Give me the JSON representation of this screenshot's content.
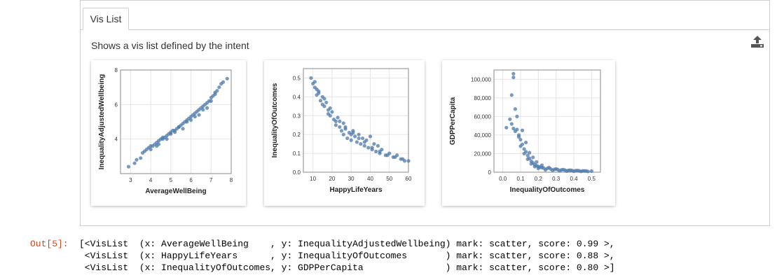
{
  "widget": {
    "tab_label": "Vis List",
    "description": "Shows a vis list defined by the intent",
    "export_icon": "upload-icon",
    "mark_color": "#4c78a8"
  },
  "output": {
    "prompt": "Out[5]:",
    "lines": [
      "[<VisList  (x: AverageWellBeing    , y: InequalityAdjustedWellbeing) mark: scatter, score: 0.99 >,",
      " <VisList  (x: HappyLifeYears      , y: InequalityOfOutcomes       ) mark: scatter, score: 0.88 >,",
      " <VisList  (x: InequalityOfOutcomes, y: GDPPerCapita               ) mark: scatter, score: 0.80 >]"
    ]
  },
  "chart_data": [
    {
      "type": "scatter",
      "xlabel": "AverageWellBeing",
      "ylabel": "InequalityAdjustedWellbeing",
      "xlim": [
        2.5,
        8
      ],
      "ylim": [
        2,
        8
      ],
      "xticks": [
        "3",
        "4",
        "5",
        "6",
        "7",
        "8"
      ],
      "yticks": [
        "4",
        "6",
        "8"
      ],
      "x": [
        2.9,
        3.2,
        3.3,
        3.5,
        3.7,
        3.8,
        3.9,
        4.0,
        4.1,
        4.2,
        4.3,
        4.4,
        4.5,
        4.6,
        4.7,
        4.8,
        4.9,
        5.0,
        5.1,
        5.2,
        5.3,
        5.4,
        5.5,
        5.6,
        5.7,
        5.8,
        5.9,
        6.0,
        6.1,
        6.2,
        6.3,
        6.4,
        6.5,
        6.6,
        6.7,
        6.8,
        6.9,
        7.0,
        7.1,
        7.2,
        7.3,
        7.4,
        7.5,
        7.6,
        7.8,
        4.3,
        4.6,
        5.0,
        5.4,
        5.8,
        6.2,
        6.6,
        7.0,
        3.6,
        4.0,
        4.4,
        4.8,
        5.2,
        5.6,
        6.0,
        6.4,
        6.8,
        7.2
      ],
      "y": [
        2.4,
        2.6,
        2.8,
        2.9,
        3.3,
        3.4,
        3.5,
        3.6,
        3.6,
        3.7,
        3.8,
        3.9,
        4.0,
        4.0,
        4.1,
        4.2,
        4.3,
        4.4,
        4.5,
        4.5,
        4.6,
        4.7,
        4.8,
        4.9,
        5.0,
        5.1,
        5.2,
        5.3,
        5.4,
        5.5,
        5.6,
        5.7,
        5.8,
        5.9,
        6.0,
        6.1,
        6.2,
        6.4,
        6.5,
        6.7,
        6.8,
        7.0,
        7.2,
        7.3,
        7.5,
        3.6,
        4.1,
        4.3,
        4.7,
        5.0,
        5.3,
        5.7,
        6.2,
        3.2,
        3.4,
        3.7,
        4.0,
        4.4,
        4.6,
        5.1,
        5.4,
        5.8,
        6.6
      ]
    },
    {
      "type": "scatter",
      "xlabel": "HappyLifeYears",
      "ylabel": "InequalityOfOutcomes",
      "xlim": [
        5,
        60
      ],
      "ylim": [
        0,
        0.55
      ],
      "xticks": [
        "10",
        "20",
        "30",
        "40",
        "50",
        "60"
      ],
      "yticks": [
        "0.0",
        "0.1",
        "0.2",
        "0.3",
        "0.4",
        "0.5"
      ],
      "x": [
        9,
        10,
        11,
        12,
        12,
        13,
        14,
        15,
        15,
        16,
        17,
        18,
        18,
        19,
        20,
        21,
        22,
        22,
        23,
        24,
        25,
        26,
        26,
        27,
        28,
        29,
        30,
        30,
        31,
        32,
        33,
        34,
        35,
        36,
        37,
        38,
        39,
        40,
        41,
        42,
        43,
        44,
        45,
        46,
        48,
        50,
        52,
        54,
        56,
        58,
        60,
        11,
        13,
        16,
        19,
        24,
        27,
        31,
        34,
        37,
        41,
        45,
        49,
        53,
        57
      ],
      "y": [
        0.5,
        0.47,
        0.45,
        0.44,
        0.41,
        0.42,
        0.38,
        0.4,
        0.36,
        0.35,
        0.37,
        0.33,
        0.31,
        0.3,
        0.32,
        0.28,
        0.27,
        0.25,
        0.29,
        0.24,
        0.22,
        0.26,
        0.2,
        0.23,
        0.18,
        0.21,
        0.2,
        0.17,
        0.22,
        0.19,
        0.16,
        0.2,
        0.15,
        0.18,
        0.14,
        0.17,
        0.13,
        0.19,
        0.12,
        0.15,
        0.11,
        0.14,
        0.1,
        0.12,
        0.09,
        0.1,
        0.08,
        0.09,
        0.07,
        0.06,
        0.06,
        0.48,
        0.43,
        0.39,
        0.34,
        0.27,
        0.24,
        0.21,
        0.18,
        0.16,
        0.13,
        0.11,
        0.09,
        0.08,
        0.07
      ]
    },
    {
      "type": "scatter",
      "xlabel": "InequalityOfOutcomes",
      "ylabel": "GDPPerCapita",
      "xlim": [
        -0.05,
        0.55
      ],
      "ylim": [
        0,
        110000
      ],
      "xticks": [
        "0.0",
        "0.1",
        "0.2",
        "0.3",
        "0.4",
        "0.5"
      ],
      "yticks": [
        "0",
        "20,000",
        "40,000",
        "60,000",
        "80,000",
        "100,000"
      ],
      "x": [
        0.06,
        0.06,
        0.05,
        0.07,
        0.04,
        0.05,
        0.06,
        0.08,
        0.07,
        0.09,
        0.1,
        0.11,
        0.12,
        0.13,
        0.14,
        0.15,
        0.16,
        0.17,
        0.18,
        0.19,
        0.2,
        0.21,
        0.22,
        0.23,
        0.25,
        0.27,
        0.29,
        0.31,
        0.33,
        0.35,
        0.37,
        0.39,
        0.41,
        0.43,
        0.45,
        0.47,
        0.5,
        0.08,
        0.09,
        0.1,
        0.12,
        0.14,
        0.16,
        0.18,
        0.2,
        0.24,
        0.28,
        0.32,
        0.36,
        0.4,
        0.44,
        0.48,
        0.11,
        0.13,
        0.15,
        0.17,
        0.19,
        0.22,
        0.26,
        0.3,
        0.34,
        0.38,
        0.42,
        0.46,
        0.02
      ],
      "y": [
        106000,
        102000,
        83000,
        68000,
        57000,
        52000,
        47000,
        46000,
        44000,
        40000,
        35000,
        30000,
        25000,
        22000,
        18000,
        15000,
        12000,
        10000,
        8000,
        7000,
        6000,
        5500,
        5000,
        4500,
        4000,
        3500,
        3000,
        2800,
        2500,
        2300,
        2000,
        1800,
        1700,
        1500,
        1400,
        1300,
        1200,
        60000,
        38000,
        28000,
        20000,
        14000,
        9000,
        6000,
        4000,
        2500,
        2000,
        1500,
        1200,
        1000,
        900,
        800,
        45000,
        32000,
        21000,
        16000,
        11000,
        7500,
        5000,
        3500,
        2800,
        2200,
        1800,
        1400,
        48000
      ]
    }
  ]
}
